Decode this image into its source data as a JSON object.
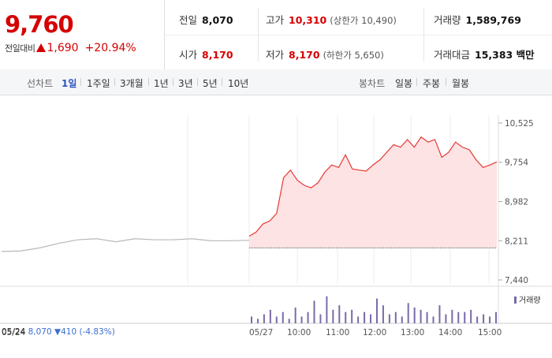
{
  "quote": {
    "price": "9,760",
    "change_label": "전일대비",
    "change_value": "1,690",
    "change_pct": "+20.94%",
    "prev_close_label": "전일",
    "prev_close": "8,070",
    "open_label": "시가",
    "open": "8,170",
    "high_label": "고가",
    "high": "10,310",
    "upper_limit": "(상한가 10,490)",
    "low_label": "저가",
    "low": "8,170",
    "lower_limit": "(하한가 5,650)",
    "volume_label": "거래량",
    "volume": "1,589,769",
    "trade_value_label": "거래대금",
    "trade_value": "15,383 백만"
  },
  "tabs": {
    "line_label": "선차트",
    "line_periods": [
      "1일",
      "1주일",
      "3개월",
      "1년",
      "3년",
      "5년",
      "10년"
    ],
    "active_period": "1일",
    "candle_label": "봉차트",
    "candle_periods": [
      "일봉",
      "주봉",
      "월봉"
    ]
  },
  "chart_data": {
    "type": "line",
    "y_ticks": [
      "10,525",
      "9,754",
      "8,982",
      "8,211",
      "7,440"
    ],
    "ylim": [
      7440,
      10525
    ],
    "reference_price": 8070,
    "x_labels": [
      "05/24",
      "05/27",
      "10:00",
      "11:00",
      "12:00",
      "13:00",
      "14:00",
      "15:00"
    ],
    "volume_legend": "거래량",
    "prev_day_info": {
      "date": "05/24",
      "close": "8,070",
      "change": "▼410",
      "pct": "(-4.83%)"
    },
    "series": [
      {
        "values": [
          8000,
          8010,
          8070,
          8160,
          8230,
          8250,
          8190,
          8250,
          8230,
          8230,
          8250,
          8210,
          8210,
          8220
        ]
      },
      {
        "values": [
          8300,
          8380,
          8540,
          8600,
          8750,
          9450,
          9600,
          9400,
          9300,
          9250,
          9350,
          9560,
          9700,
          9650,
          9900,
          9620,
          9600,
          9580,
          9700,
          9800,
          9950,
          10100,
          10050,
          10200,
          10050,
          10250,
          10150,
          10200,
          9850,
          9950,
          10150,
          10050,
          10000,
          9800,
          9650,
          9700,
          9760
        ]
      },
      {
        "values": [
          3,
          2,
          4,
          6,
          3,
          5,
          2,
          7,
          3,
          5,
          10,
          4,
          12,
          6,
          8,
          5,
          6,
          3,
          5,
          4,
          11,
          8,
          4,
          5,
          3,
          9,
          7,
          6,
          5,
          3,
          8,
          4,
          6,
          5,
          5,
          6,
          3,
          4,
          3,
          5
        ]
      }
    ]
  }
}
